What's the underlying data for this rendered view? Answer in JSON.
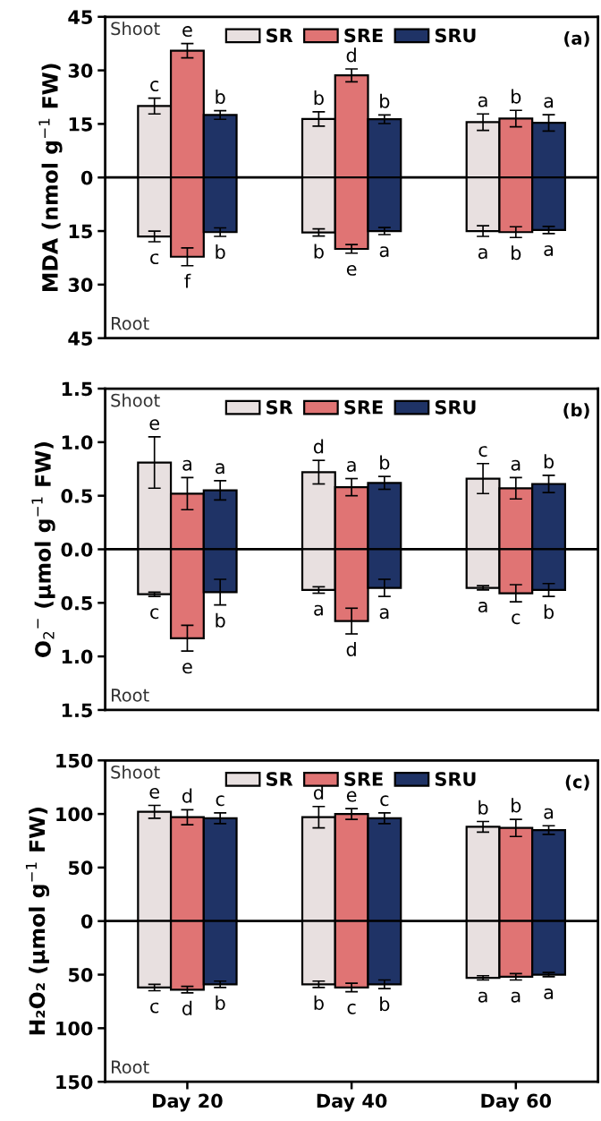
{
  "chart_data": [
    {
      "type": "bar",
      "stacked": true,
      "ylabel": "MDA (nmol g$^{−1}$ FW)",
      "categories": [
        null,
        null,
        null,
        null,
        null,
        null,
        null,
        null,
        null,
        null,
        null,
        null,
        null,
        null,
        null
      ],
      "tick_labels": "y",
      "legend": "top",
      "annotations": [
        "Shoot",
        "Root",
        "(a)"
      ],
      "ylim": [
        -45,
        45
      ],
      "yticks": [
        {
          "value": -45,
          "label": "45"
        },
        {
          "value": -30,
          "label": "30"
        },
        {
          "value": -15,
          "label": "15"
        },
        0,
        15,
        30,
        45
      ],
      "ref_lines": [
        {
          "axis": "y",
          "value": 0
        }
      ],
      "series": [
        {
          "name": "SR",
          "color": "#e8e0e0",
          "values": [
            null,
            20,
            null,
            null,
            null,
            null,
            16.4,
            null,
            null,
            null,
            null,
            15.5,
            null,
            null,
            null
          ],
          "errors": [
            null,
            2.2,
            null,
            null,
            null,
            null,
            2,
            null,
            null,
            null,
            null,
            2.3,
            null,
            null,
            null
          ],
          "value_labels": [
            null,
            "c",
            null,
            null,
            null,
            null,
            "b",
            null,
            null,
            null,
            null,
            "a",
            null,
            null,
            null
          ]
        },
        {
          "name": "SRE",
          "color": "#e07474",
          "values": [
            null,
            null,
            35.5,
            null,
            null,
            null,
            null,
            28.6,
            null,
            null,
            null,
            null,
            16.5,
            null,
            null
          ],
          "errors": [
            null,
            null,
            2,
            null,
            null,
            null,
            null,
            1.8,
            null,
            null,
            null,
            null,
            2.3,
            null,
            null
          ],
          "value_labels": [
            null,
            null,
            "e",
            null,
            null,
            null,
            null,
            "d",
            null,
            null,
            null,
            null,
            "b",
            null,
            null
          ]
        },
        {
          "name": "SRU",
          "color": "#1f3366",
          "values": [
            null,
            null,
            null,
            17.5,
            null,
            null,
            null,
            null,
            16.3,
            null,
            null,
            null,
            null,
            15.3,
            null
          ],
          "errors": [
            null,
            null,
            null,
            1.2,
            null,
            null,
            null,
            null,
            1.2,
            null,
            null,
            null,
            null,
            2.3,
            null
          ],
          "value_labels": [
            null,
            null,
            null,
            "b",
            null,
            null,
            null,
            null,
            "b",
            null,
            null,
            null,
            null,
            "a",
            null
          ]
        },
        {
          "color": "#e8e0e0",
          "values": [
            null,
            -16.5,
            null,
            null,
            null,
            null,
            -15.4,
            null,
            null,
            null,
            null,
            -15,
            null,
            null,
            null
          ],
          "errors": [
            null,
            1.5,
            null,
            null,
            null,
            null,
            1,
            null,
            null,
            null,
            null,
            1.5,
            null,
            null,
            null
          ],
          "value_labels": [
            null,
            "c",
            null,
            null,
            null,
            null,
            "b",
            null,
            null,
            null,
            null,
            "a",
            null,
            null,
            null
          ]
        },
        {
          "color": "#e07474",
          "values": [
            null,
            null,
            -22.2,
            null,
            null,
            null,
            null,
            -20,
            null,
            null,
            null,
            null,
            -15.3,
            null,
            null
          ],
          "errors": [
            null,
            null,
            2.5,
            null,
            null,
            null,
            null,
            1.2,
            null,
            null,
            null,
            null,
            1.5,
            null,
            null
          ],
          "value_labels": [
            null,
            null,
            "f",
            null,
            null,
            null,
            null,
            "e",
            null,
            null,
            null,
            null,
            "b",
            null,
            null
          ]
        },
        {
          "color": "#1f3366",
          "values": [
            null,
            null,
            null,
            -15.3,
            null,
            null,
            null,
            null,
            -15,
            null,
            null,
            null,
            null,
            -14.7,
            null
          ],
          "errors": [
            null,
            null,
            null,
            1.2,
            null,
            null,
            null,
            null,
            1,
            null,
            null,
            null,
            null,
            1,
            null
          ],
          "value_labels": [
            null,
            null,
            null,
            "b",
            null,
            null,
            null,
            null,
            "a",
            null,
            null,
            null,
            null,
            "a",
            null
          ]
        }
      ]
    },
    {
      "type": "bar",
      "stacked": true,
      "ylabel": "O$_{2}$$^{−}$ (µmol g$^{−1}$ FW)",
      "categories": [
        null,
        null,
        null,
        null,
        null,
        null,
        null,
        null,
        null,
        null,
        null,
        null,
        null,
        null,
        null
      ],
      "tick_labels": "y",
      "legend": "top",
      "annotations": [
        "Shoot",
        "Root",
        "(b)"
      ],
      "ylim": [
        -1.5,
        1.5
      ],
      "yticks": [
        {
          "value": -1.5,
          "label": "1.5"
        },
        {
          "value": -1.0,
          "label": "1.0"
        },
        {
          "value": -0.5,
          "label": "0.5"
        },
        {
          "value": 0,
          "label": "0.0"
        },
        {
          "value": 0.5,
          "label": "0.5"
        },
        {
          "value": 1.0,
          "label": "1.0"
        },
        {
          "value": 1.5,
          "label": "1.5"
        }
      ],
      "ref_lines": [
        {
          "axis": "y",
          "value": 0
        }
      ],
      "series": [
        {
          "name": "SR",
          "color": "#e8e0e0",
          "values": [
            null,
            0.81,
            null,
            null,
            null,
            null,
            0.72,
            null,
            null,
            null,
            null,
            0.66,
            null,
            null,
            null
          ],
          "errors": [
            null,
            0.24,
            null,
            null,
            null,
            null,
            0.11,
            null,
            null,
            null,
            null,
            0.14,
            null,
            null,
            null
          ],
          "value_labels": [
            null,
            "e",
            null,
            null,
            null,
            null,
            "d",
            null,
            null,
            null,
            null,
            "c",
            null,
            null,
            null
          ]
        },
        {
          "name": "SRE",
          "color": "#e07474",
          "values": [
            null,
            null,
            0.52,
            null,
            null,
            null,
            null,
            0.58,
            null,
            null,
            null,
            null,
            0.57,
            null,
            null
          ],
          "errors": [
            null,
            null,
            0.15,
            null,
            null,
            null,
            null,
            0.08,
            null,
            null,
            null,
            null,
            0.1,
            null,
            null
          ],
          "value_labels": [
            null,
            null,
            "a",
            null,
            null,
            null,
            null,
            "a",
            null,
            null,
            null,
            null,
            "a",
            null,
            null
          ]
        },
        {
          "name": "SRU",
          "color": "#1f3366",
          "values": [
            null,
            null,
            null,
            0.55,
            null,
            null,
            null,
            null,
            0.62,
            null,
            null,
            null,
            null,
            0.61,
            null
          ],
          "errors": [
            null,
            null,
            null,
            0.09,
            null,
            null,
            null,
            null,
            0.06,
            null,
            null,
            null,
            null,
            0.08,
            null
          ],
          "value_labels": [
            null,
            null,
            null,
            "a",
            null,
            null,
            null,
            null,
            "b",
            null,
            null,
            null,
            null,
            "b",
            null
          ]
        },
        {
          "color": "#e8e0e0",
          "values": [
            null,
            -0.42,
            null,
            null,
            null,
            null,
            -0.38,
            null,
            null,
            null,
            null,
            -0.36,
            null,
            null,
            null
          ],
          "errors": [
            null,
            0.02,
            null,
            null,
            null,
            null,
            0.03,
            null,
            null,
            null,
            null,
            0.02,
            null,
            null,
            null
          ],
          "value_labels": [
            null,
            "c",
            null,
            null,
            null,
            null,
            "a",
            null,
            null,
            null,
            null,
            "a",
            null,
            null,
            null
          ]
        },
        {
          "color": "#e07474",
          "values": [
            null,
            null,
            -0.83,
            null,
            null,
            null,
            null,
            -0.67,
            null,
            null,
            null,
            null,
            -0.41,
            null,
            null
          ],
          "errors": [
            null,
            null,
            0.12,
            null,
            null,
            null,
            null,
            0.12,
            null,
            null,
            null,
            null,
            0.08,
            null,
            null
          ],
          "value_labels": [
            null,
            null,
            "e",
            null,
            null,
            null,
            null,
            "d",
            null,
            null,
            null,
            null,
            "c",
            null,
            null
          ]
        },
        {
          "color": "#1f3366",
          "values": [
            null,
            null,
            null,
            -0.4,
            null,
            null,
            null,
            null,
            -0.36,
            null,
            null,
            null,
            null,
            -0.38,
            null
          ],
          "errors": [
            null,
            null,
            null,
            0.12,
            null,
            null,
            null,
            null,
            0.08,
            null,
            null,
            null,
            null,
            0.06,
            null
          ],
          "value_labels": [
            null,
            null,
            null,
            "b",
            null,
            null,
            null,
            null,
            "a",
            null,
            null,
            null,
            null,
            "b",
            null
          ]
        }
      ]
    },
    {
      "type": "bar",
      "stacked": true,
      "ylabel": "H₂O₂ (µmol g$^{−1}$ FW)",
      "categories": [
        null,
        null,
        "Day 20",
        null,
        null,
        null,
        null,
        "Day 40",
        null,
        null,
        null,
        null,
        "Day 60",
        null,
        null
      ],
      "legend": "top",
      "annotations": [
        "Shoot",
        "Root",
        "(c)"
      ],
      "ylim": [
        -150,
        150
      ],
      "yticks": [
        {
          "value": -150,
          "label": "150"
        },
        {
          "value": -100,
          "label": "100"
        },
        {
          "value": -50,
          "label": "50"
        },
        0,
        50,
        100,
        150
      ],
      "ref_lines": [
        {
          "axis": "y",
          "value": 0
        }
      ],
      "series": [
        {
          "name": "SR",
          "color": "#e8e0e0",
          "values": [
            null,
            102,
            null,
            null,
            null,
            null,
            97,
            null,
            null,
            null,
            null,
            88,
            null,
            null,
            null
          ],
          "errors": [
            null,
            6,
            null,
            null,
            null,
            null,
            10,
            null,
            null,
            null,
            null,
            5,
            null,
            null,
            null
          ],
          "value_labels": [
            null,
            "e",
            null,
            null,
            null,
            null,
            "d",
            null,
            null,
            null,
            null,
            "b",
            null,
            null,
            null
          ]
        },
        {
          "name": "SRE",
          "color": "#e07474",
          "values": [
            null,
            null,
            97,
            null,
            null,
            null,
            null,
            100,
            null,
            null,
            null,
            null,
            87,
            null,
            null
          ],
          "errors": [
            null,
            null,
            7,
            null,
            null,
            null,
            null,
            5,
            null,
            null,
            null,
            null,
            8,
            null,
            null
          ],
          "value_labels": [
            null,
            null,
            "d",
            null,
            null,
            null,
            null,
            "e",
            null,
            null,
            null,
            null,
            "b",
            null,
            null
          ]
        },
        {
          "name": "SRU",
          "color": "#1f3366",
          "values": [
            null,
            null,
            null,
            96,
            null,
            null,
            null,
            null,
            96,
            null,
            null,
            null,
            null,
            85,
            null
          ],
          "errors": [
            null,
            null,
            null,
            5,
            null,
            null,
            null,
            null,
            5,
            null,
            null,
            null,
            null,
            4,
            null
          ],
          "value_labels": [
            null,
            null,
            null,
            "c",
            null,
            null,
            null,
            null,
            "c",
            null,
            null,
            null,
            null,
            "a",
            null
          ]
        },
        {
          "color": "#e8e0e0",
          "values": [
            null,
            -62,
            null,
            null,
            null,
            null,
            -59,
            null,
            null,
            null,
            null,
            -53,
            null,
            null,
            null
          ],
          "errors": [
            null,
            3,
            null,
            null,
            null,
            null,
            3,
            null,
            null,
            null,
            null,
            2,
            null,
            null,
            null
          ],
          "value_labels": [
            null,
            "c",
            null,
            null,
            null,
            null,
            "b",
            null,
            null,
            null,
            null,
            "a",
            null,
            null,
            null
          ]
        },
        {
          "color": "#e07474",
          "values": [
            null,
            null,
            -64,
            null,
            null,
            null,
            null,
            -62,
            null,
            null,
            null,
            null,
            -52,
            null,
            null
          ],
          "errors": [
            null,
            null,
            3,
            null,
            null,
            null,
            null,
            4,
            null,
            null,
            null,
            null,
            3,
            null,
            null
          ],
          "value_labels": [
            null,
            null,
            "d",
            null,
            null,
            null,
            null,
            "c",
            null,
            null,
            null,
            null,
            "a",
            null,
            null
          ]
        },
        {
          "color": "#1f3366",
          "values": [
            null,
            null,
            null,
            -59,
            null,
            null,
            null,
            null,
            -59,
            null,
            null,
            null,
            null,
            -50,
            null
          ],
          "errors": [
            null,
            null,
            null,
            3,
            null,
            null,
            null,
            null,
            4,
            null,
            null,
            null,
            null,
            2,
            null
          ],
          "value_labels": [
            null,
            null,
            null,
            "b",
            null,
            null,
            null,
            null,
            "b",
            null,
            null,
            null,
            null,
            "a",
            null
          ]
        }
      ]
    }
  ]
}
